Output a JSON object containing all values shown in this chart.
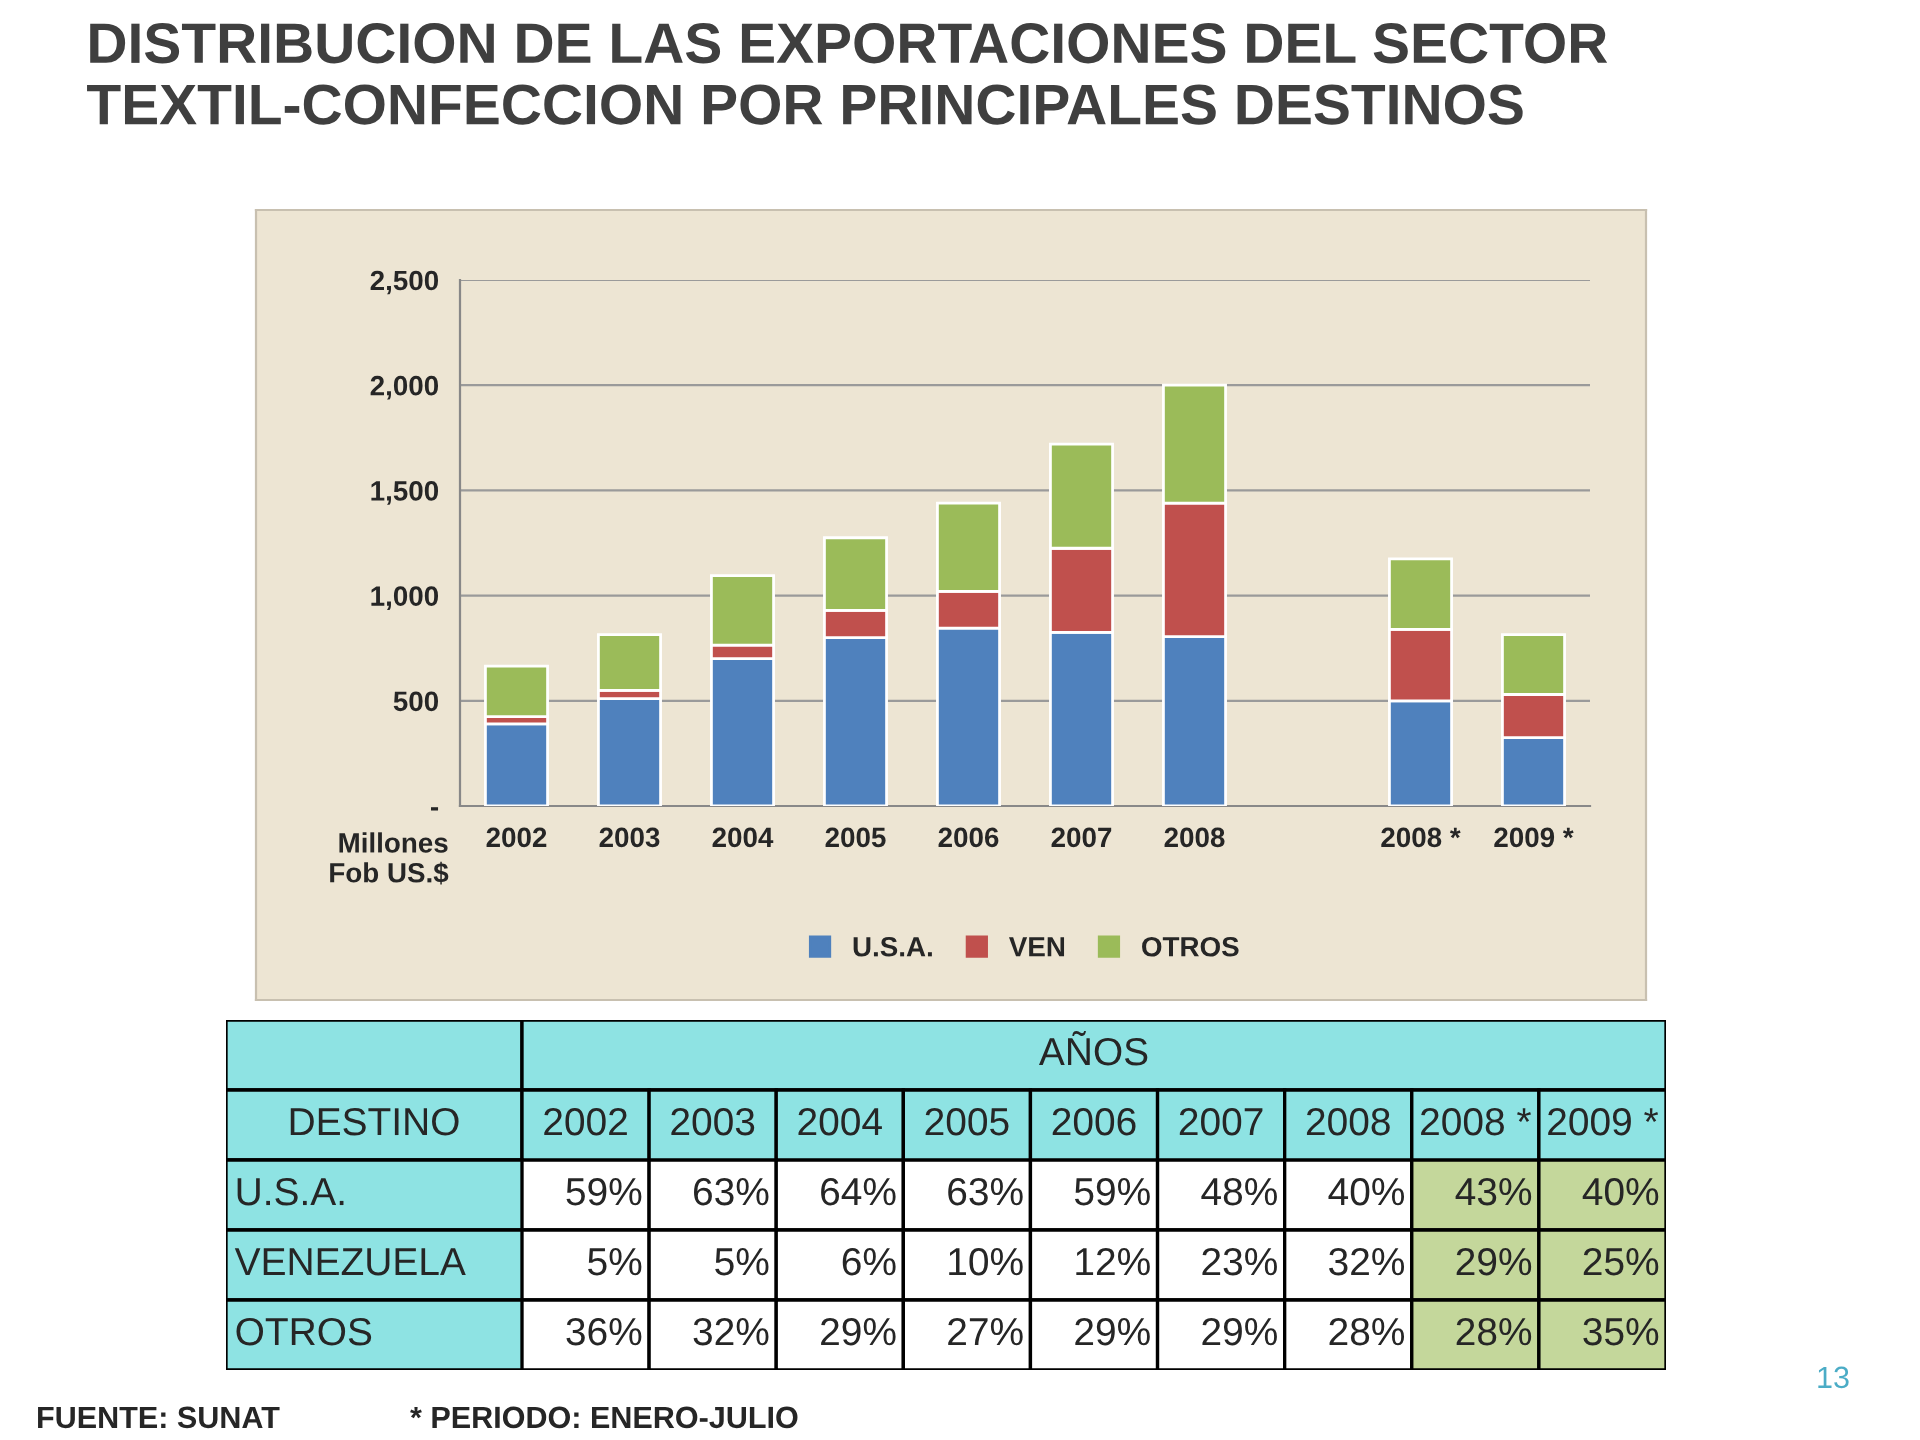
{
  "chart_data": [
    {
      "type": "bar",
      "title": "DISTRIBUCION DE LAS EXPORTACIONES DEL SECTOR TEXTIL-CONFECCION POR PRINCIPALES DESTINOS",
      "ylabel": "Millones\nFob US.$",
      "categories": [
        "2002",
        "2003",
        "2004",
        "2005",
        "2006",
        "2007",
        "2008",
        null,
        "2008 *",
        "2009 *"
      ],
      "stacked": true,
      "series": [
        {
          "name": "U.S.A.",
          "color": "#4f81bd",
          "values": [
            390,
            510,
            700,
            800,
            845,
            825,
            805,
            null,
            500,
            325
          ]
        },
        {
          "name": "VEN",
          "color": "#c0504d",
          "values": [
            35,
            40,
            65,
            130,
            175,
            400,
            635,
            null,
            340,
            205
          ]
        },
        {
          "name": "OTROS",
          "color": "#9bbb59",
          "values": [
            240,
            265,
            330,
            345,
            420,
            495,
            560,
            null,
            335,
            285
          ]
        }
      ],
      "ylim": [
        0,
        2500
      ],
      "yticks": [
        {
          "value": 0,
          "label": "-"
        },
        {
          "value": 500,
          "label": "500"
        },
        {
          "value": 1000,
          "label": "1,000"
        },
        {
          "value": 1500,
          "label": "1,500"
        },
        {
          "value": 2000,
          "label": "2,000"
        },
        {
          "value": 2500,
          "label": "2,500"
        }
      ],
      "grid": "y",
      "legend": "bottom"
    },
    {
      "type": "heatmap",
      "title": "AÑOS",
      "ylabel": "DESTINO",
      "categories": [
        "2002",
        "2003",
        "2004",
        "2005",
        "2006",
        "2007",
        "2008",
        "2008 *",
        "2009 *"
      ],
      "y_categories": [
        "U.S.A.",
        "VENEZUELA",
        "OTROS"
      ],
      "cells": [
        [
          59,
          63,
          64,
          63,
          59,
          48,
          40,
          43,
          40
        ],
        [
          5,
          5,
          6,
          10,
          12,
          23,
          32,
          29,
          25
        ],
        [
          36,
          32,
          29,
          27,
          29,
          29,
          28,
          28,
          35
        ]
      ],
      "cell_labels": [
        [
          "59%",
          "63%",
          "64%",
          "63%",
          "59%",
          "48%",
          "40%",
          "43%",
          "40%"
        ],
        [
          "5%",
          "5%",
          "6%",
          "10%",
          "12%",
          "23%",
          "32%",
          "29%",
          "25%"
        ],
        [
          "36%",
          "32%",
          "29%",
          "27%",
          "29%",
          "29%",
          "28%",
          "28%",
          "35%"
        ]
      ],
      "annotations": [
        "FUENTE: SUNAT",
        "* PERIODO: ENERO-JULIO",
        "13"
      ]
    }
  ]
}
